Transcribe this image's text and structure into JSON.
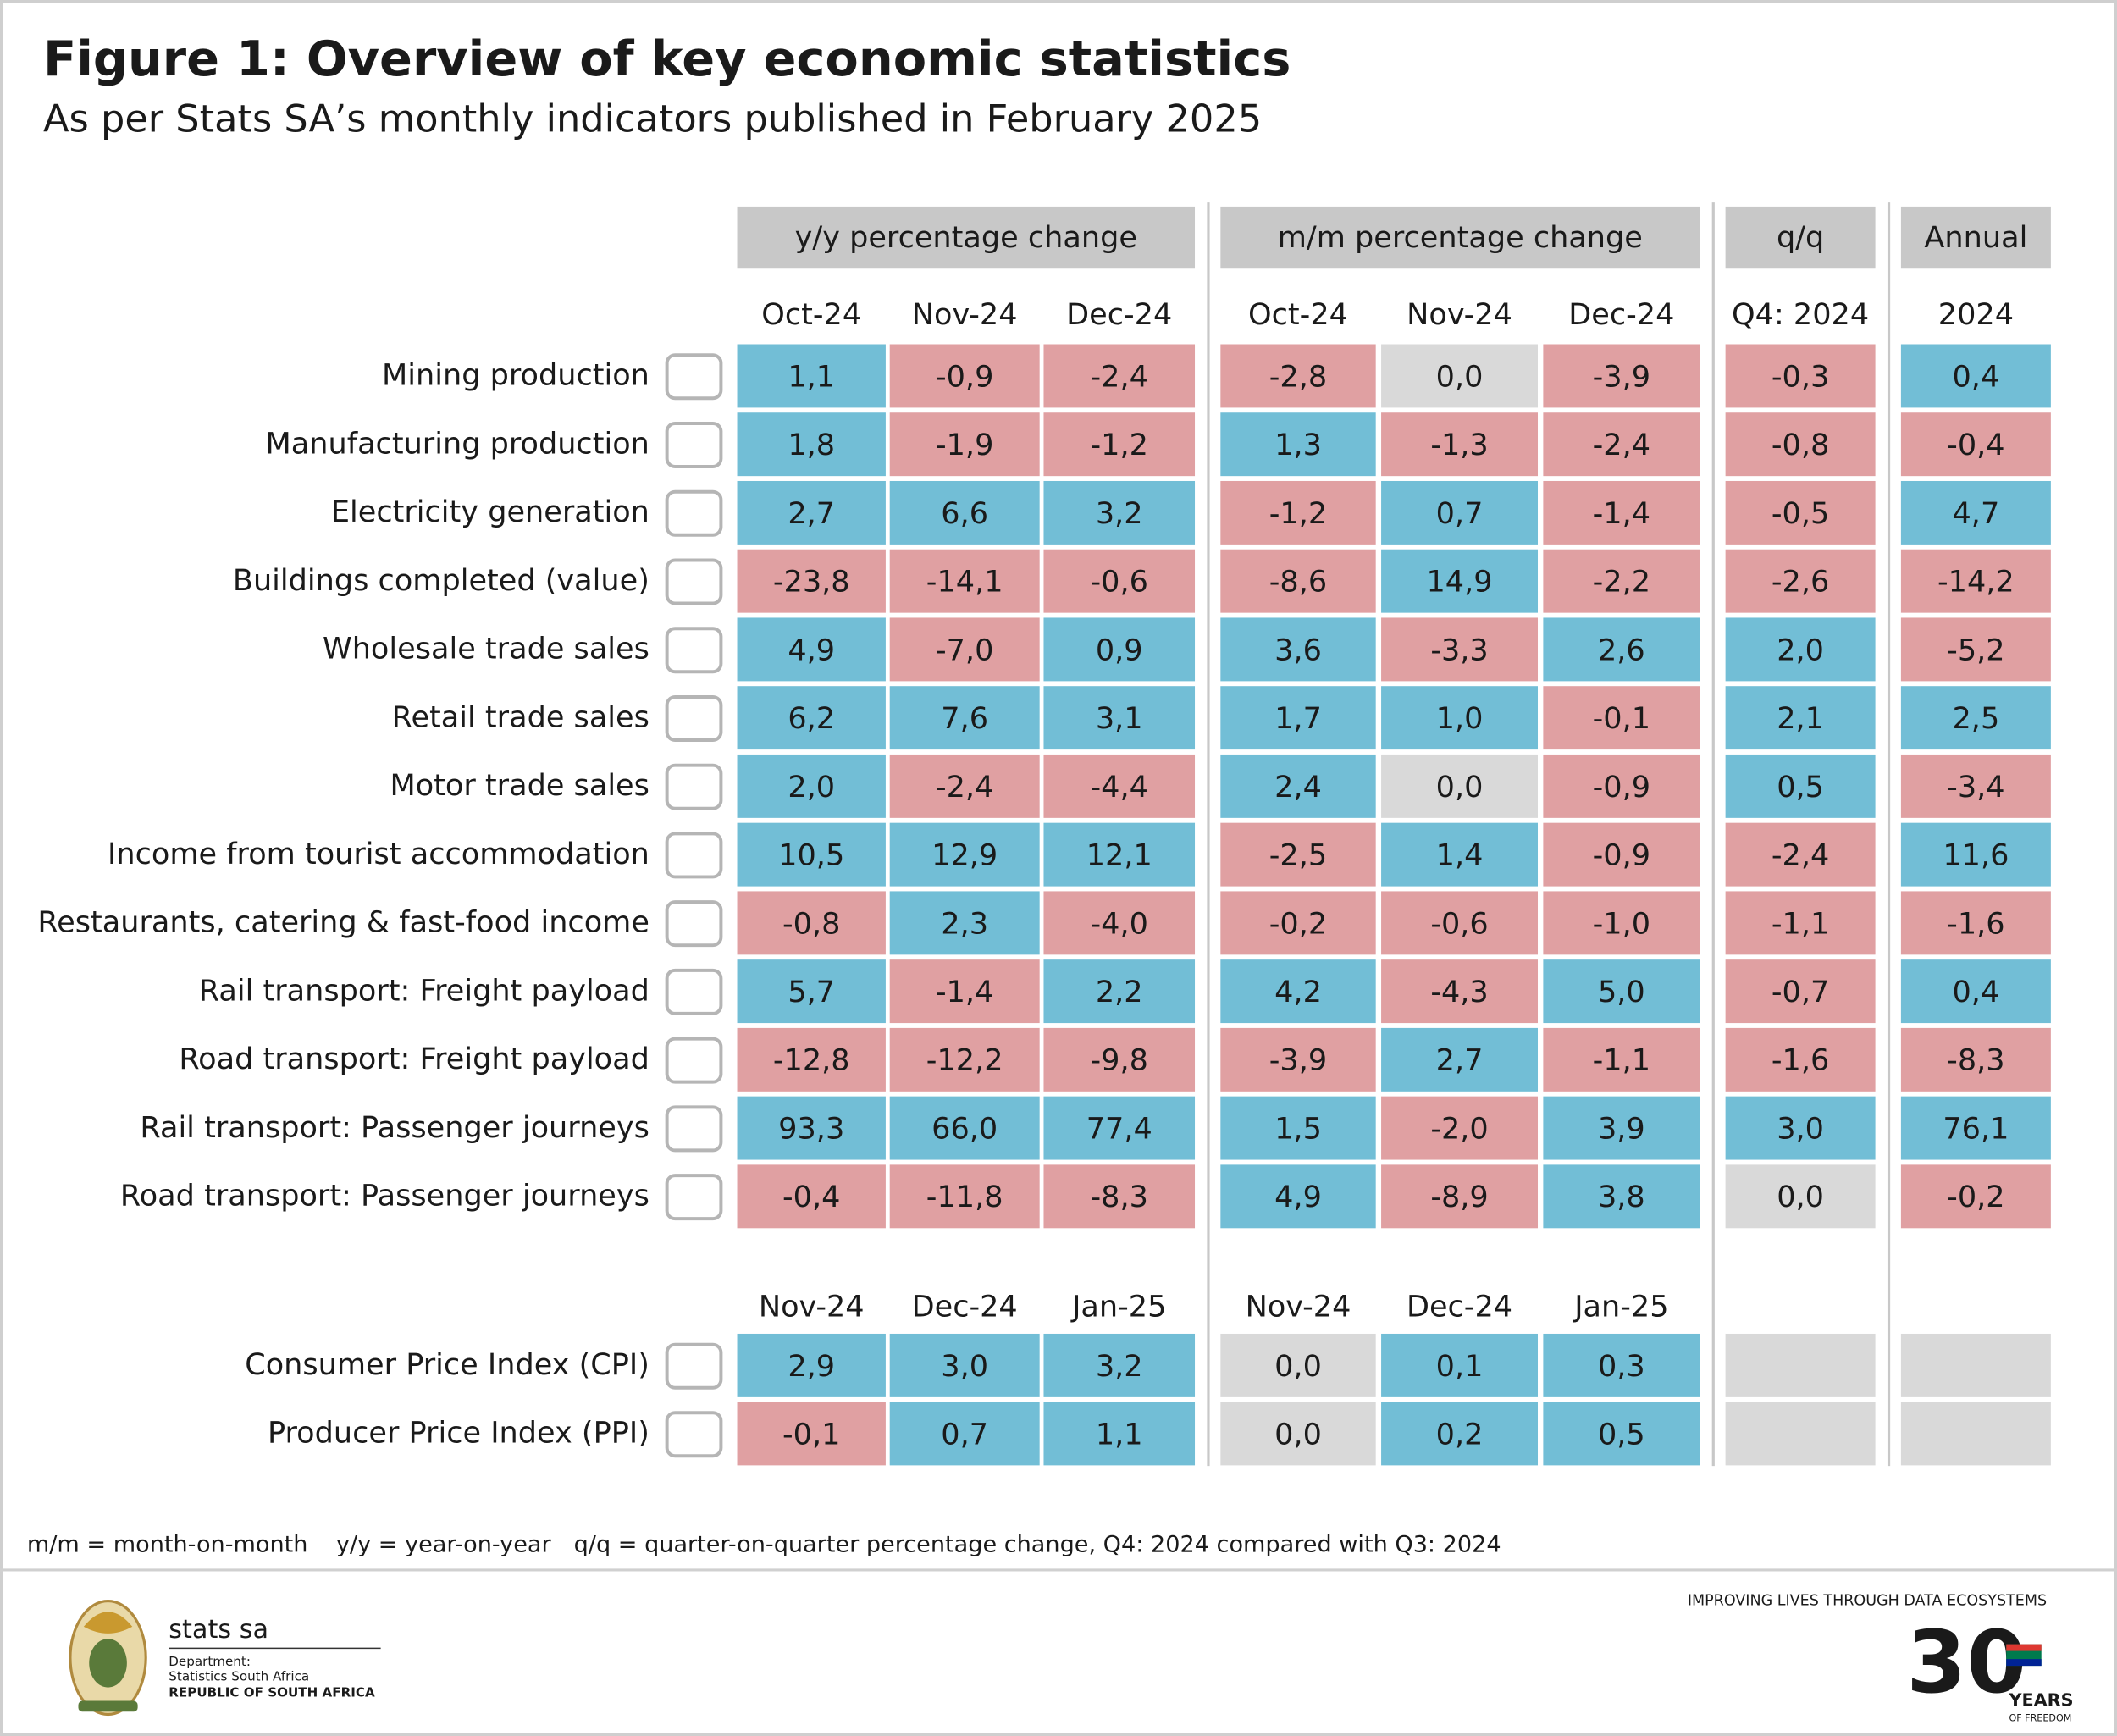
{
  "header": {
    "title": "Figure 1: Overview of key economic statistics",
    "subtitle": "As per Stats SA’s monthly indicators published in February 2025"
  },
  "table": {
    "groups": [
      "y/y percentage change",
      "m/m percentage change",
      "q/q",
      "Annual"
    ],
    "columns": [
      "Oct-24",
      "Nov-24",
      "Dec-24",
      "Oct-24",
      "Nov-24",
      "Dec-24",
      "Q4: 2024",
      "2024"
    ],
    "rows": [
      {
        "label": "Mining production",
        "values": [
          "1,1",
          "-0,9",
          "-2,4",
          "-2,8",
          "0,0",
          "-3,9",
          "-0,3",
          "0,4"
        ]
      },
      {
        "label": "Manufacturing production",
        "values": [
          "1,8",
          "-1,9",
          "-1,2",
          "1,3",
          "-1,3",
          "-2,4",
          "-0,8",
          "-0,4"
        ]
      },
      {
        "label": "Electricity generation",
        "values": [
          "2,7",
          "6,6",
          "3,2",
          "-1,2",
          "0,7",
          "-1,4",
          "-0,5",
          "4,7"
        ]
      },
      {
        "label": "Buildings completed (value)",
        "values": [
          "-23,8",
          "-14,1",
          "-0,6",
          "-8,6",
          "14,9",
          "-2,2",
          "-2,6",
          "-14,2"
        ]
      },
      {
        "label": "Wholesale trade sales",
        "values": [
          "4,9",
          "-7,0",
          "0,9",
          "3,6",
          "-3,3",
          "2,6",
          "2,0",
          "-5,2"
        ]
      },
      {
        "label": "Retail trade sales",
        "values": [
          "6,2",
          "7,6",
          "3,1",
          "1,7",
          "1,0",
          "-0,1",
          "2,1",
          "2,5"
        ]
      },
      {
        "label": "Motor trade sales",
        "values": [
          "2,0",
          "-2,4",
          "-4,4",
          "2,4",
          "0,0",
          "-0,9",
          "0,5",
          "-3,4"
        ]
      },
      {
        "label": "Income from tourist accommodation",
        "values": [
          "10,5",
          "12,9",
          "12,1",
          "-2,5",
          "1,4",
          "-0,9",
          "-2,4",
          "11,6"
        ]
      },
      {
        "label": "Restaurants, catering & fast-food income",
        "values": [
          "-0,8",
          "2,3",
          "-4,0",
          "-0,2",
          "-0,6",
          "-1,0",
          "-1,1",
          "-1,6"
        ]
      },
      {
        "label": "Rail transport: Freight payload",
        "values": [
          "5,7",
          "-1,4",
          "2,2",
          "4,2",
          "-4,3",
          "5,0",
          "-0,7",
          "0,4"
        ]
      },
      {
        "label": "Road transport: Freight payload",
        "values": [
          "-12,8",
          "-12,2",
          "-9,8",
          "-3,9",
          "2,7",
          "-1,1",
          "-1,6",
          "-8,3"
        ]
      },
      {
        "label": "Rail transport: Passenger journeys",
        "values": [
          "93,3",
          "66,0",
          "77,4",
          "1,5",
          "-2,0",
          "3,9",
          "3,0",
          "76,1"
        ]
      },
      {
        "label": "Road transport: Passenger journeys",
        "values": [
          "-0,4",
          "-11,8",
          "-8,3",
          "4,9",
          "-8,9",
          "3,8",
          "0,0",
          "-0,2"
        ]
      }
    ],
    "price_columns": [
      "Nov-24",
      "Dec-24",
      "Jan-25",
      "Nov-24",
      "Dec-24",
      "Jan-25"
    ],
    "price_rows": [
      {
        "label": "Consumer Price Index (CPI)",
        "values": [
          "2,9",
          "3,0",
          "3,2",
          "0,0",
          "0,1",
          "0,3"
        ]
      },
      {
        "label": "Producer Price Index (PPI)",
        "values": [
          "-0,1",
          "0,7",
          "1,1",
          "0,0",
          "0,2",
          "0,5"
        ]
      }
    ]
  },
  "footnotes": [
    "m/m = month-on-month",
    "y/y = year-on-year",
    "q/q = quarter-on-quarter percentage change, Q4: 2024 compared with Q3: 2024"
  ],
  "footer": {
    "brand": "stats sa",
    "department": "Department:",
    "organisation": "Statistics South Africa",
    "country": "REPUBLIC OF SOUTH AFRICA",
    "slogan": "IMPROVING LIVES THROUGH DATA ECOSYSTEMS",
    "anniversary": "30",
    "anniversary_years": "YEARS",
    "anniversary_caption": "OF FREEDOM"
  }
}
